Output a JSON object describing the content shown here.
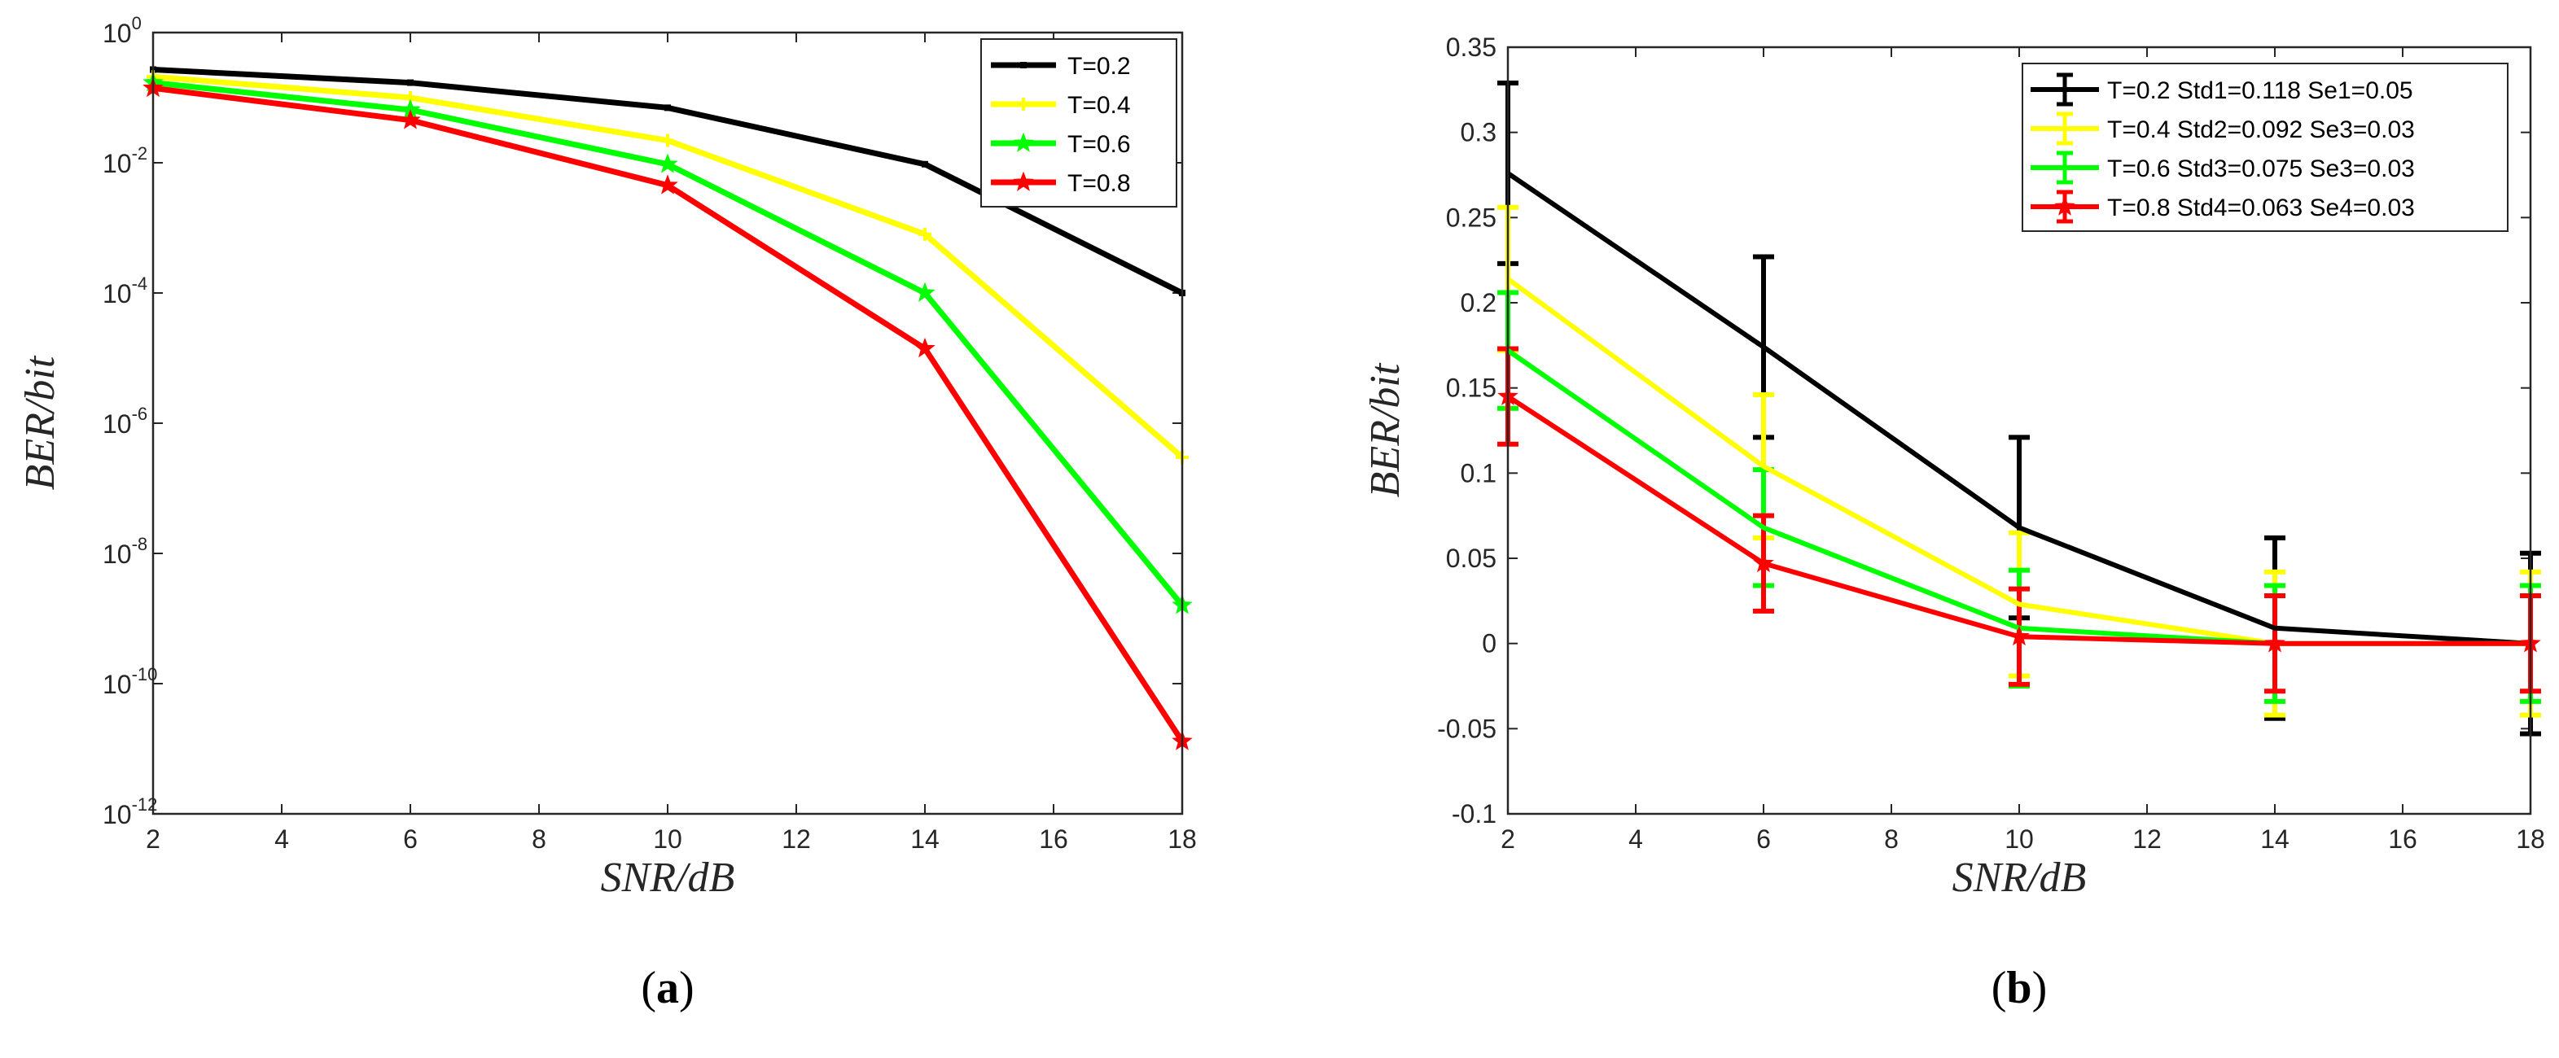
{
  "chart_data": [
    {
      "type": "line",
      "panel": "a",
      "yscale": "log",
      "x": [
        2,
        6,
        10,
        14,
        18
      ],
      "xticks": [
        "2",
        "4",
        "6",
        "8",
        "10",
        "12",
        "14",
        "16",
        "18"
      ],
      "xlim": [
        2,
        18
      ],
      "ylim": [
        1e-12,
        1
      ],
      "yticks": [
        {
          "base": "10",
          "exp": "0"
        },
        {
          "base": "10",
          "exp": "-2"
        },
        {
          "base": "10",
          "exp": "-4"
        },
        {
          "base": "10",
          "exp": "-6"
        },
        {
          "base": "10",
          "exp": "-8"
        },
        {
          "base": "10",
          "exp": "-10"
        },
        {
          "base": "10",
          "exp": "-12"
        }
      ],
      "xlabel": "SNR/dB",
      "ylabel": "BER/bit",
      "legend_position": "top-right",
      "series": [
        {
          "name": "T=0.2",
          "color": "#000000",
          "values": [
            0.27,
            0.17,
            0.07,
            0.0095,
            0.0001
          ]
        },
        {
          "name": "T=0.4",
          "color": "#ffff00",
          "values": [
            0.21,
            0.1,
            0.022,
            0.0008,
            3e-07
          ]
        },
        {
          "name": "T=0.6",
          "color": "#00ff00",
          "values": [
            0.17,
            0.065,
            0.0095,
            0.0001,
            1.6e-09
          ]
        },
        {
          "name": "T=0.8",
          "color": "#ff0000",
          "values": [
            0.14,
            0.045,
            0.0045,
            1.4e-05,
            1.3e-11
          ]
        }
      ],
      "caption": "a"
    },
    {
      "type": "line",
      "panel": "b",
      "error_bars": true,
      "x": [
        2,
        6,
        10,
        14,
        18
      ],
      "xticks": [
        "2",
        "4",
        "6",
        "8",
        "10",
        "12",
        "14",
        "16",
        "18"
      ],
      "xlim": [
        2,
        18
      ],
      "ylim": [
        -0.1,
        0.35
      ],
      "yticks": [
        "-0.1",
        "-0.05",
        "0",
        "0.05",
        "0.1",
        "0.15",
        "0.2",
        "0.25",
        "0.3",
        "0.35"
      ],
      "xlabel": "SNR/dB",
      "ylabel": "BER/bit",
      "legend_position": "top-right",
      "series": [
        {
          "name": "T=0.2 Std1=0.118 Se1=0.05",
          "color": "#000000",
          "values": [
            0.276,
            0.174,
            0.068,
            0.009,
            0.0
          ],
          "error": 0.053
        },
        {
          "name": "T=0.4 Std2=0.092 Se3=0.03",
          "color": "#ffff00",
          "values": [
            0.214,
            0.104,
            0.023,
            0.0,
            0.0
          ],
          "error": 0.042
        },
        {
          "name": "T=0.6 Std3=0.075 Se3=0.03",
          "color": "#00ff00",
          "values": [
            0.172,
            0.068,
            0.009,
            0.0,
            0.0
          ],
          "error": 0.034
        },
        {
          "name": "T=0.8 Std4=0.063 Se4=0.03",
          "color": "#ff0000",
          "values": [
            0.145,
            0.047,
            0.004,
            0.0,
            0.0
          ],
          "error": 0.028
        }
      ],
      "caption": "b"
    }
  ]
}
